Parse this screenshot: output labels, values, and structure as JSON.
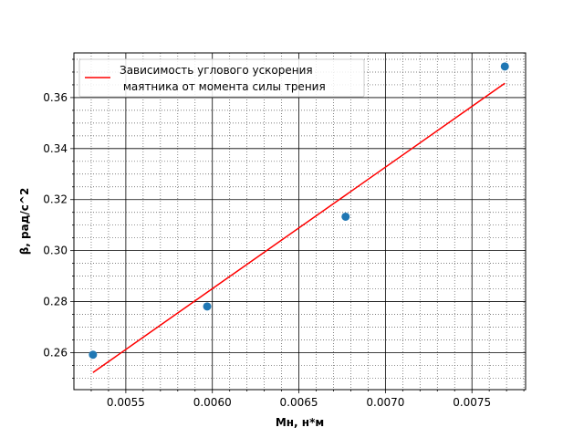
{
  "chart_data": {
    "type": "scatter",
    "title": "",
    "xlabel": "Мн, н*м",
    "ylabel": "β, рад/с^2",
    "xlim": [
      0.0052,
      0.00781
    ],
    "ylim": [
      0.2455,
      0.3775
    ],
    "xticks": [
      0.0055,
      0.006,
      0.0065,
      0.007,
      0.0075
    ],
    "xtick_labels": [
      "0.0055",
      "0.0060",
      "0.0065",
      "0.0070",
      "0.0075"
    ],
    "yticks": [
      0.26,
      0.28,
      0.3,
      0.32,
      0.34,
      0.36
    ],
    "ytick_labels": [
      "0.26",
      "0.28",
      "0.30",
      "0.32",
      "0.34",
      "0.36"
    ],
    "grid": {
      "major": true,
      "minor": true
    },
    "legend_position": "top-left",
    "series": [
      {
        "name": "Зависимость углового ускорения\n маятника от момента силы трения",
        "kind": "line",
        "color": "#ff0000",
        "x": [
          0.00531,
          0.00769
        ],
        "y": [
          0.2522,
          0.3656
        ]
      },
      {
        "name": "",
        "kind": "scatter",
        "color": "#1f77b4",
        "x": [
          0.00531,
          0.00597,
          0.00677,
          0.00769
        ],
        "y": [
          0.2592,
          0.2781,
          0.3133,
          0.3722
        ]
      }
    ]
  }
}
